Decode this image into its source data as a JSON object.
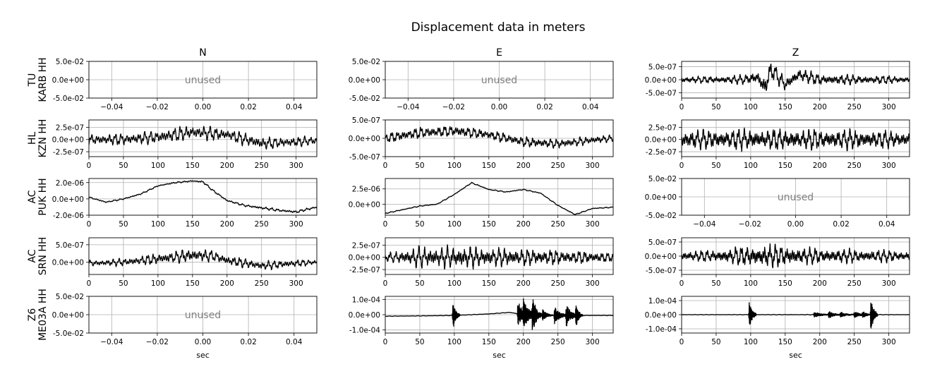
{
  "figure": {
    "title": "Displacement data in meters",
    "column_titles": [
      "N",
      "E",
      "Z"
    ],
    "row_labels": [
      {
        "net": "TU",
        "sta": "KARB HH"
      },
      {
        "net": "HL",
        "sta": "KZN HH"
      },
      {
        "net": "AC",
        "sta": "PUK HH"
      },
      {
        "net": "AC",
        "sta": "SRN HH"
      },
      {
        "net": "Z6",
        "sta": "ME03A HH"
      }
    ],
    "xlabel": "sec",
    "unused_text": "unused",
    "colors": {
      "trace": "#000000",
      "grid": "#b0b0b0",
      "unused": "#808080",
      "axes": "#000000"
    }
  },
  "chart_data": [
    {
      "row": 0,
      "col": 0,
      "type": "line",
      "unused": true,
      "xlim": [
        -0.05,
        0.05
      ],
      "xticks": [
        "−0.04",
        "−0.02",
        "0.00",
        "0.02",
        "0.04"
      ],
      "ylim": [
        -0.05,
        0.05
      ],
      "yticks": [
        "5.0e-02",
        "0.0e+00",
        "-5.0e-02"
      ],
      "yticks_values": [
        0.05,
        0,
        -0.05
      ]
    },
    {
      "row": 0,
      "col": 1,
      "type": "line",
      "unused": true,
      "xlim": [
        -0.05,
        0.05
      ],
      "xticks": [
        "−0.04",
        "−0.02",
        "0.00",
        "0.02",
        "0.04"
      ],
      "ylim": [
        -0.05,
        0.05
      ],
      "yticks": [
        "5.0e-02",
        "0.0e+00",
        "-5.0e-02"
      ],
      "yticks_values": [
        0.05,
        0,
        -0.05
      ]
    },
    {
      "row": 0,
      "col": 2,
      "type": "line",
      "unused": false,
      "xlim": [
        0,
        330
      ],
      "xticks": [
        "0",
        "50",
        "100",
        "150",
        "200",
        "250",
        "300"
      ],
      "ylim": [
        -7e-07,
        7e-07
      ],
      "yticks": [
        "5.0e-07",
        "0.0e+00",
        "-5.0e-07"
      ],
      "yticks_values": [
        5e-07,
        0,
        -5e-07
      ],
      "series": [
        {
          "x": [
            0,
            30,
            60,
            90,
            110,
            120,
            130,
            150,
            170,
            200,
            250,
            300,
            330
          ],
          "y": [
            0,
            0,
            0,
            0,
            1e-07,
            -3e-07,
            4e-07,
            -2e-07,
            2e-07,
            0,
            0,
            0,
            0
          ],
          "amplitude": [
            1.5e-07,
            1.5e-07,
            1.8e-07,
            2e-07,
            3e-07,
            4.5e-07,
            4e-07,
            3e-07,
            2.8e-07,
            2.5e-07,
            2e-07,
            1.8e-07,
            1.5e-07
          ]
        }
      ]
    },
    {
      "row": 1,
      "col": 0,
      "type": "line",
      "unused": false,
      "xlim": [
        0,
        330
      ],
      "xticks": [
        "0",
        "50",
        "100",
        "150",
        "200",
        "250",
        "300"
      ],
      "ylim": [
        -3.5e-07,
        4e-07
      ],
      "yticks": [
        "2.5e-07",
        "0.0e+00",
        "-2.5e-07"
      ],
      "yticks_values": [
        2.5e-07,
        0,
        -2.5e-07
      ],
      "series": [
        {
          "x": [
            0,
            50,
            100,
            150,
            200,
            250,
            300,
            330
          ],
          "y": [
            0,
            0,
            5e-08,
            1.5e-07,
            1e-07,
            -8e-08,
            -5e-08,
            -2e-08
          ],
          "amplitude": [
            1.2e-07,
            1.4e-07,
            1.6e-07,
            1.7e-07,
            1.5e-07,
            1.4e-07,
            1.2e-07,
            1e-07
          ]
        }
      ]
    },
    {
      "row": 1,
      "col": 1,
      "type": "line",
      "unused": false,
      "xlim": [
        0,
        330
      ],
      "xticks": [
        "0",
        "50",
        "100",
        "150",
        "200",
        "250",
        "300"
      ],
      "ylim": [
        -5e-07,
        5e-07
      ],
      "yticks": [
        "5.0e-07",
        "0.0e+00",
        "-5.0e-07"
      ],
      "yticks_values": [
        5e-07,
        0,
        -5e-07
      ],
      "series": [
        {
          "x": [
            0,
            50,
            100,
            150,
            200,
            250,
            300,
            330
          ],
          "y": [
            0,
            1.5e-07,
            2e-07,
            1e-07,
            -1e-07,
            -1.5e-07,
            -5e-08,
            0
          ],
          "amplitude": [
            1.5e-07,
            1.8e-07,
            1.8e-07,
            1.6e-07,
            1.6e-07,
            1.5e-07,
            1.2e-07,
            1e-07
          ]
        }
      ]
    },
    {
      "row": 1,
      "col": 2,
      "type": "line",
      "unused": false,
      "xlim": [
        0,
        330
      ],
      "xticks": [
        "0",
        "50",
        "100",
        "150",
        "200",
        "250",
        "300"
      ],
      "ylim": [
        -3.5e-07,
        4e-07
      ],
      "yticks": [
        "2.5e-07",
        "0.0e+00",
        "-2.5e-07"
      ],
      "yticks_values": [
        2.5e-07,
        0,
        -2.5e-07
      ],
      "series": [
        {
          "x": [
            0,
            50,
            100,
            150,
            200,
            250,
            300,
            330
          ],
          "y": [
            0,
            0,
            0,
            0,
            0,
            0,
            0,
            0
          ],
          "amplitude": [
            2.3e-07,
            2.3e-07,
            2.5e-07,
            2.5e-07,
            2.3e-07,
            2.3e-07,
            2e-07,
            1.8e-07
          ]
        }
      ]
    },
    {
      "row": 2,
      "col": 0,
      "type": "line",
      "unused": false,
      "xlim": [
        0,
        330
      ],
      "xticks": [
        "0",
        "50",
        "100",
        "150",
        "200",
        "250",
        "300"
      ],
      "ylim": [
        -2e-06,
        2.5e-06
      ],
      "yticks": [
        "2.0e-06",
        "0.0e+00",
        "-2.0e-06"
      ],
      "yticks_values": [
        2e-06,
        0,
        -2e-06
      ],
      "series": [
        {
          "x": [
            0,
            25,
            50,
            75,
            100,
            125,
            150,
            165,
            180,
            200,
            225,
            250,
            275,
            300,
            330
          ],
          "y": [
            2e-07,
            -4e-07,
            0,
            6e-07,
            1.6e-06,
            2e-06,
            2.2e-06,
            2.1e-06,
            1e-06,
            -2e-07,
            -8e-07,
            -1.1e-06,
            -1.4e-06,
            -1.6e-06,
            -1e-06
          ],
          "amplitude": [
            1e-07,
            1e-07,
            1e-07,
            1e-07,
            1e-07,
            1e-07,
            1e-07,
            1.5e-07,
            1.5e-07,
            1.5e-07,
            1.5e-07,
            2e-07,
            2e-07,
            2e-07,
            1.5e-07
          ]
        }
      ]
    },
    {
      "row": 2,
      "col": 1,
      "type": "line",
      "unused": false,
      "xlim": [
        0,
        330
      ],
      "xticks": [
        "0",
        "50",
        "100",
        "150",
        "200",
        "250",
        "300"
      ],
      "ylim": [
        -1.8e-06,
        4.2e-06
      ],
      "yticks": [
        "2.5e-06",
        "0.0e+00"
      ],
      "yticks_values": [
        2.5e-06,
        0
      ],
      "series": [
        {
          "x": [
            0,
            25,
            50,
            75,
            100,
            125,
            150,
            175,
            200,
            225,
            250,
            275,
            300,
            330
          ],
          "y": [
            -1.5e-06,
            -9e-07,
            -3e-07,
            0,
            1.6e-06,
            3.5e-06,
            2.4e-06,
            2e-06,
            2.4e-06,
            1.8e-06,
            -2e-07,
            -1.7e-06,
            -7e-07,
            -5e-07
          ],
          "amplitude": [
            1e-07,
            1e-07,
            1e-07,
            1e-07,
            1e-07,
            1e-07,
            1e-07,
            1e-07,
            1e-07,
            1e-07,
            1e-07,
            1e-07,
            1e-07,
            1e-07
          ]
        }
      ]
    },
    {
      "row": 2,
      "col": 2,
      "type": "line",
      "unused": true,
      "xlim": [
        -0.05,
        0.05
      ],
      "xticks": [
        "−0.04",
        "−0.02",
        "0.00",
        "0.02",
        "0.04"
      ],
      "ylim": [
        -0.05,
        0.05
      ],
      "yticks": [
        "5.0e-02",
        "0.0e+00",
        "-5.0e-02"
      ],
      "yticks_values": [
        0.05,
        0,
        -0.05
      ]
    },
    {
      "row": 3,
      "col": 0,
      "type": "line",
      "unused": false,
      "xlim": [
        0,
        330
      ],
      "xticks": [
        "0",
        "50",
        "100",
        "150",
        "200",
        "250",
        "300"
      ],
      "ylim": [
        -3.5e-07,
        7e-07
      ],
      "yticks": [
        "5.0e-07",
        "0.0e+00"
      ],
      "yticks_values": [
        5e-07,
        0
      ],
      "series": [
        {
          "x": [
            0,
            50,
            100,
            150,
            180,
            200,
            250,
            300,
            330
          ],
          "y": [
            -3e-08,
            0,
            1e-07,
            2e-07,
            1.8e-07,
            5e-08,
            -1e-07,
            -3e-08,
            0
          ],
          "amplitude": [
            1e-07,
            1.2e-07,
            1.8e-07,
            2.2e-07,
            1.8e-07,
            1.6e-07,
            1.5e-07,
            1.2e-07,
            8e-08
          ]
        }
      ]
    },
    {
      "row": 3,
      "col": 1,
      "type": "line",
      "unused": false,
      "xlim": [
        0,
        330
      ],
      "xticks": [
        "0",
        "50",
        "100",
        "150",
        "200",
        "250",
        "300"
      ],
      "ylim": [
        -3.5e-07,
        4e-07
      ],
      "yticks": [
        "2.5e-07",
        "0.0e+00",
        "-2.5e-07"
      ],
      "yticks_values": [
        2.5e-07,
        0,
        -2.5e-07
      ],
      "series": [
        {
          "x": [
            0,
            25,
            50,
            75,
            100,
            125,
            150,
            200,
            250,
            300,
            330
          ],
          "y": [
            0,
            0,
            0,
            0,
            0,
            0,
            0,
            0,
            0,
            0,
            0
          ],
          "amplitude": [
            1e-07,
            1.5e-07,
            2.5e-07,
            2.3e-07,
            2.8e-07,
            2.5e-07,
            2.2e-07,
            2e-07,
            1.8e-07,
            1.4e-07,
            1e-07
          ]
        }
      ]
    },
    {
      "row": 3,
      "col": 2,
      "type": "line",
      "unused": false,
      "xlim": [
        0,
        330
      ],
      "xticks": [
        "0",
        "50",
        "100",
        "150",
        "200",
        "250",
        "300"
      ],
      "ylim": [
        -6.5e-07,
        6.5e-07
      ],
      "yticks": [
        "5.0e-07",
        "0.0e+00",
        "-5.0e-07"
      ],
      "yticks_values": [
        5e-07,
        0,
        -5e-07
      ],
      "series": [
        {
          "x": [
            0,
            50,
            100,
            125,
            150,
            200,
            250,
            300,
            330
          ],
          "y": [
            0,
            0,
            0,
            0,
            0,
            0,
            0,
            0,
            0
          ],
          "amplitude": [
            2e-07,
            2.5e-07,
            4.5e-07,
            5e-07,
            4e-07,
            3e-07,
            2.8e-07,
            2.5e-07,
            2e-07
          ]
        }
      ]
    },
    {
      "row": 4,
      "col": 0,
      "type": "line",
      "unused": true,
      "xlim": [
        -0.05,
        0.05
      ],
      "xticks": [
        "−0.04",
        "−0.02",
        "0.00",
        "0.02",
        "0.04"
      ],
      "ylim": [
        -0.05,
        0.05
      ],
      "yticks": [
        "5.0e-02",
        "0.0e+00",
        "-5.0e-02"
      ],
      "yticks_values": [
        0.05,
        0,
        -0.05
      ]
    },
    {
      "row": 4,
      "col": 1,
      "type": "line",
      "unused": false,
      "xlim": [
        0,
        330
      ],
      "xticks": [
        "0",
        "50",
        "100",
        "150",
        "200",
        "250",
        "300"
      ],
      "ylim": [
        -0.00012,
        0.00012
      ],
      "yticks": [
        "1.0e-04",
        "0.0e+00",
        "-1.0e-04"
      ],
      "yticks_values": [
        0.0001,
        0,
        -0.0001
      ],
      "series": [
        {
          "x": [
            0,
            50,
            100,
            150,
            180,
            200,
            250,
            300,
            330
          ],
          "y": [
            -1e-05,
            -8e-06,
            -5e-06,
            5e-06,
            1.5e-05,
            0,
            -5e-06,
            -5e-06,
            -5e-06
          ],
          "amplitude": [
            2e-06,
            2e-06,
            2e-06,
            2e-06,
            2e-06,
            2e-06,
            2e-06,
            2e-06,
            2e-06
          ],
          "bursts": [
            {
              "t": 98,
              "amp": 0.0001,
              "dur": 4
            },
            {
              "t": 192,
              "amp": 8.5e-05,
              "dur": 8
            },
            {
              "t": 200,
              "amp": 8e-05,
              "dur": 8
            },
            {
              "t": 213,
              "amp": 0.00011,
              "dur": 6
            },
            {
              "t": 228,
              "amp": 4e-05,
              "dur": 6
            },
            {
              "t": 245,
              "amp": 6e-05,
              "dur": 8
            },
            {
              "t": 262,
              "amp": 7e-05,
              "dur": 8
            },
            {
              "t": 276,
              "amp": 7e-05,
              "dur": 4
            }
          ]
        }
      ]
    },
    {
      "row": 4,
      "col": 2,
      "type": "line",
      "unused": false,
      "xlim": [
        0,
        330
      ],
      "xticks": [
        "0",
        "50",
        "100",
        "150",
        "200",
        "250",
        "300"
      ],
      "ylim": [
        -0.00013,
        0.00013
      ],
      "yticks": [
        "1.0e-04",
        "0.0e+00",
        "-1.0e-04"
      ],
      "yticks_values": [
        0.0001,
        0,
        -0.0001
      ],
      "series": [
        {
          "x": [
            0,
            100,
            200,
            330
          ],
          "y": [
            0,
            0,
            0,
            0
          ],
          "amplitude": [
            2e-06,
            2e-06,
            3e-06,
            2e-06
          ],
          "bursts": [
            {
              "t": 98,
              "amp": 0.00011,
              "dur": 4
            },
            {
              "t": 192,
              "amp": 2e-05,
              "dur": 10
            },
            {
              "t": 213,
              "amp": 2.5e-05,
              "dur": 8
            },
            {
              "t": 230,
              "amp": 2e-05,
              "dur": 8
            },
            {
              "t": 250,
              "amp": 2.5e-05,
              "dur": 8
            },
            {
              "t": 262,
              "amp": 2e-05,
              "dur": 6
            },
            {
              "t": 274,
              "amp": 0.00013,
              "dur": 4
            }
          ]
        }
      ]
    }
  ]
}
